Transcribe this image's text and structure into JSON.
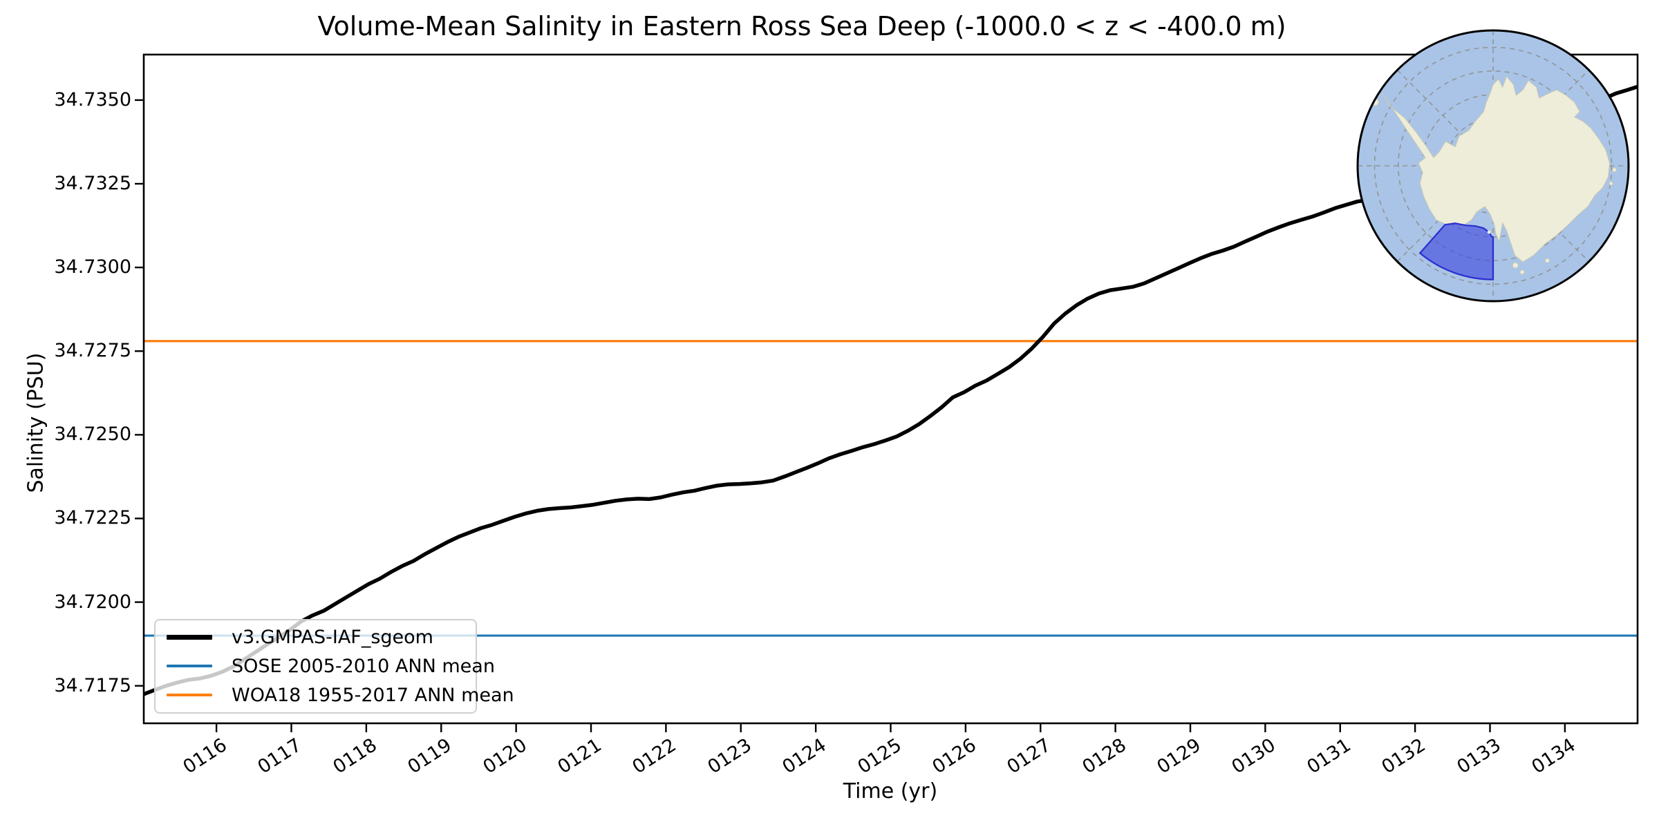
{
  "title": "Volume-Mean Salinity in Eastern Ross Sea Deep (-1000.0 < z < -400.0 m)",
  "axes": {
    "xlabel": "Time (yr)",
    "ylabel": "Salinity (PSU)",
    "x_ticks": [
      {
        "label": "0116",
        "year": 116
      },
      {
        "label": "0117",
        "year": 117
      },
      {
        "label": "0118",
        "year": 118
      },
      {
        "label": "0119",
        "year": 119
      },
      {
        "label": "0120",
        "year": 120
      },
      {
        "label": "0121",
        "year": 121
      },
      {
        "label": "0122",
        "year": 122
      },
      {
        "label": "0123",
        "year": 123
      },
      {
        "label": "0124",
        "year": 124
      },
      {
        "label": "0125",
        "year": 125
      },
      {
        "label": "0126",
        "year": 126
      },
      {
        "label": "0127",
        "year": 127
      },
      {
        "label": "0128",
        "year": 128
      },
      {
        "label": "0129",
        "year": 129
      },
      {
        "label": "0130",
        "year": 130
      },
      {
        "label": "0131",
        "year": 131
      },
      {
        "label": "0132",
        "year": 132
      },
      {
        "label": "0133",
        "year": 133
      },
      {
        "label": "0134",
        "year": 134
      }
    ],
    "y_ticks": [
      {
        "label": "34.7350",
        "value": 34.735
      },
      {
        "label": "34.7325",
        "value": 34.7325
      },
      {
        "label": "34.7300",
        "value": 34.73
      },
      {
        "label": "34.7275",
        "value": 34.7275
      },
      {
        "label": "34.7250",
        "value": 34.725
      },
      {
        "label": "34.7225",
        "value": 34.7225
      },
      {
        "label": "34.7200",
        "value": 34.72
      },
      {
        "label": "34.7175",
        "value": 34.7175
      }
    ]
  },
  "legend": {
    "items": [
      {
        "label": "v3.GMPAS-IAF_sgeom",
        "color": "#000000",
        "thickness": 7
      },
      {
        "label": "SOSE 2005-2010 ANN mean",
        "color": "#1f77b4",
        "thickness": 4
      },
      {
        "label": "WOA18 1955-2017 ANN mean",
        "color": "#ff7f0e",
        "thickness": 4
      }
    ]
  },
  "inset_map": {
    "description": "South polar stereographic map of Antarctica with Eastern Ross Sea region highlighted",
    "ocean_color": "#a9c4e6",
    "land_color": "#eeedd9",
    "region_fill": "#3a44dd",
    "region_stroke": "#2727cf",
    "graticule_color": "#909090"
  },
  "chart_data": {
    "type": "line",
    "title": "Volume-Mean Salinity in Eastern Ross Sea Deep (-1000.0 < z < -400.0 m)",
    "xlabel": "Time (yr)",
    "ylabel": "Salinity (PSU)",
    "xlim": [
      115.03,
      134.97
    ],
    "ylim": [
      34.71638,
      34.73636
    ],
    "grid": false,
    "legend_position": "lower left",
    "series": [
      {
        "name": "v3.GMPAS-IAF_sgeom",
        "color": "#000000",
        "linewidth": 5.5,
        "points": [
          [
            115.03,
            34.71725
          ],
          [
            115.18,
            34.71738
          ],
          [
            115.33,
            34.7175
          ],
          [
            115.48,
            34.7176
          ],
          [
            115.63,
            34.71768
          ],
          [
            115.78,
            34.71772
          ],
          [
            115.93,
            34.7178
          ],
          [
            116.08,
            34.71792
          ],
          [
            116.23,
            34.71808
          ],
          [
            116.38,
            34.7183
          ],
          [
            116.53,
            34.71852
          ],
          [
            116.68,
            34.71874
          ],
          [
            116.83,
            34.71895
          ],
          [
            116.98,
            34.71917
          ],
          [
            117.13,
            34.71942
          ],
          [
            117.28,
            34.7196
          ],
          [
            117.43,
            34.71974
          ],
          [
            117.58,
            34.71994
          ],
          [
            117.73,
            34.72014
          ],
          [
            117.88,
            34.72034
          ],
          [
            118.03,
            34.72054
          ],
          [
            118.18,
            34.7207
          ],
          [
            118.33,
            34.7209
          ],
          [
            118.48,
            34.72108
          ],
          [
            118.63,
            34.72123
          ],
          [
            118.78,
            34.72143
          ],
          [
            118.93,
            34.72161
          ],
          [
            119.08,
            34.72179
          ],
          [
            119.23,
            34.72195
          ],
          [
            119.38,
            34.72208
          ],
          [
            119.53,
            34.72221
          ],
          [
            119.68,
            34.72231
          ],
          [
            119.83,
            34.72243
          ],
          [
            119.98,
            34.72255
          ],
          [
            120.13,
            34.72265
          ],
          [
            120.28,
            34.72273
          ],
          [
            120.43,
            34.72278
          ],
          [
            120.58,
            34.72281
          ],
          [
            120.73,
            34.72283
          ],
          [
            120.88,
            34.72287
          ],
          [
            121.03,
            34.72291
          ],
          [
            121.18,
            34.72297
          ],
          [
            121.33,
            34.72303
          ],
          [
            121.48,
            34.72307
          ],
          [
            121.63,
            34.72309
          ],
          [
            121.78,
            34.72308
          ],
          [
            121.93,
            34.72313
          ],
          [
            122.08,
            34.72321
          ],
          [
            122.23,
            34.72328
          ],
          [
            122.38,
            34.72333
          ],
          [
            122.53,
            34.72341
          ],
          [
            122.68,
            34.72348
          ],
          [
            122.83,
            34.72352
          ],
          [
            122.98,
            34.72353
          ],
          [
            123.13,
            34.72355
          ],
          [
            123.28,
            34.72358
          ],
          [
            123.43,
            34.72363
          ],
          [
            123.58,
            34.72375
          ],
          [
            123.73,
            34.72388
          ],
          [
            123.88,
            34.72401
          ],
          [
            124.03,
            34.72415
          ],
          [
            124.18,
            34.7243
          ],
          [
            124.33,
            34.72442
          ],
          [
            124.48,
            34.72452
          ],
          [
            124.63,
            34.72463
          ],
          [
            124.78,
            34.72472
          ],
          [
            124.93,
            34.72483
          ],
          [
            125.08,
            34.72495
          ],
          [
            125.23,
            34.72512
          ],
          [
            125.38,
            34.72532
          ],
          [
            125.53,
            34.72556
          ],
          [
            125.68,
            34.72582
          ],
          [
            125.83,
            34.72612
          ],
          [
            125.98,
            34.72627
          ],
          [
            126.13,
            34.72647
          ],
          [
            126.28,
            34.72662
          ],
          [
            126.43,
            34.72682
          ],
          [
            126.58,
            34.72702
          ],
          [
            126.73,
            34.72727
          ],
          [
            126.88,
            34.72757
          ],
          [
            127.03,
            34.72792
          ],
          [
            127.18,
            34.72832
          ],
          [
            127.33,
            34.72862
          ],
          [
            127.48,
            34.72887
          ],
          [
            127.63,
            34.72907
          ],
          [
            127.78,
            34.72922
          ],
          [
            127.93,
            34.72932
          ],
          [
            128.08,
            34.72937
          ],
          [
            128.23,
            34.72942
          ],
          [
            128.38,
            34.72952
          ],
          [
            128.53,
            34.72967
          ],
          [
            128.68,
            34.72982
          ],
          [
            128.83,
            34.72997
          ],
          [
            128.98,
            34.73012
          ],
          [
            129.13,
            34.73027
          ],
          [
            129.28,
            34.7304
          ],
          [
            129.43,
            34.7305
          ],
          [
            129.58,
            34.73062
          ],
          [
            129.73,
            34.73077
          ],
          [
            129.88,
            34.73092
          ],
          [
            130.03,
            34.73107
          ],
          [
            130.18,
            34.7312
          ],
          [
            130.33,
            34.73132
          ],
          [
            130.48,
            34.73142
          ],
          [
            130.63,
            34.73152
          ],
          [
            130.78,
            34.73164
          ],
          [
            130.93,
            34.73177
          ],
          [
            131.08,
            34.73187
          ],
          [
            131.23,
            34.73197
          ],
          [
            131.38,
            34.73202
          ],
          [
            131.53,
            34.73204
          ],
          [
            131.68,
            34.73213
          ],
          [
            131.83,
            34.73229
          ],
          [
            131.98,
            34.73246
          ],
          [
            132.13,
            34.73263
          ],
          [
            132.28,
            34.73279
          ],
          [
            132.43,
            34.73293
          ],
          [
            132.58,
            34.73307
          ],
          [
            132.73,
            34.73321
          ],
          [
            132.88,
            34.73336
          ],
          [
            133.03,
            34.73351
          ],
          [
            133.18,
            34.73365
          ],
          [
            133.33,
            34.73378
          ],
          [
            133.48,
            34.73392
          ],
          [
            133.63,
            34.73408
          ],
          [
            133.78,
            34.73426
          ],
          [
            133.93,
            34.73444
          ],
          [
            134.08,
            34.7346
          ],
          [
            134.23,
            34.73475
          ],
          [
            134.38,
            34.73492
          ],
          [
            134.53,
            34.73505
          ],
          [
            134.68,
            34.7352
          ],
          [
            134.83,
            34.7353
          ],
          [
            134.97,
            34.7354
          ]
        ]
      },
      {
        "name": "SOSE 2005-2010 ANN mean",
        "color": "#1f77b4",
        "linewidth": 3.2,
        "constant_value": 34.719
      },
      {
        "name": "WOA18 1955-2017 ANN mean",
        "color": "#ff7f0e",
        "linewidth": 3.2,
        "constant_value": 34.7278
      }
    ]
  }
}
